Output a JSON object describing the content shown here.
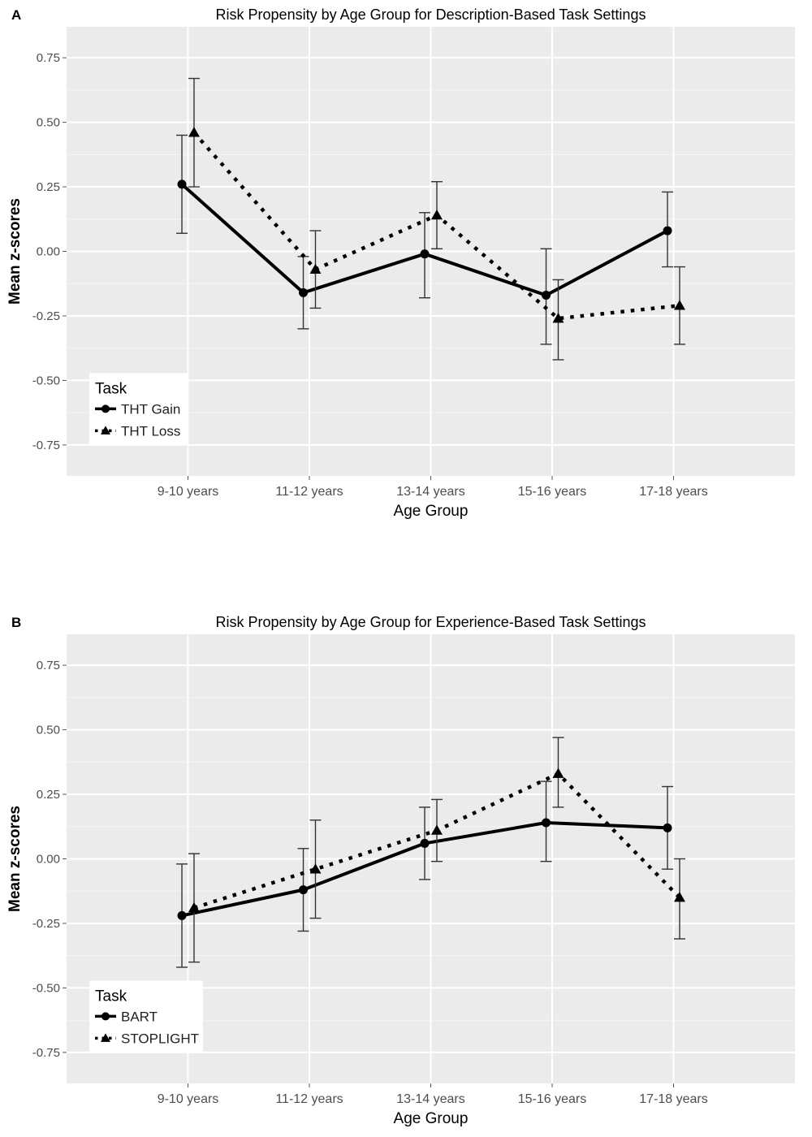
{
  "colors": {
    "panel_background": "#ebebeb",
    "grid_major": "#ffffff",
    "grid_minor": "#f5f5f5",
    "line": "#000000",
    "error_bar": "#333333",
    "tick_text": "#4d4d4d",
    "legend_background": "#ffffff"
  },
  "chart_data": [
    {
      "panel_letter": "A",
      "type": "line",
      "title": "Risk Propensity by Age Group for Description-Based Task Settings",
      "xlabel": "Age Group",
      "ylabel": "Mean z-scores",
      "ylim": [
        -0.87,
        0.87
      ],
      "yticks": [
        0.75,
        0.5,
        0.25,
        0.0,
        -0.25,
        -0.5,
        -0.75
      ],
      "ytick_labels": [
        "0.75",
        "0.50",
        "0.25",
        "0.00",
        "-0.25",
        "-0.50",
        "-0.75"
      ],
      "categories": [
        "9-10 years",
        "11-12 years",
        "13-14 years",
        "15-16 years",
        "17-18 years"
      ],
      "grid": true,
      "legend": {
        "title": "Task",
        "position": "bottom-left"
      },
      "series": [
        {
          "name": "THT Gain",
          "marker": "circle",
          "linestyle": "solid",
          "dodge": -0.05,
          "values": [
            0.26,
            -0.16,
            -0.01,
            -0.17,
            0.08
          ],
          "lower": [
            0.07,
            -0.3,
            -0.18,
            -0.36,
            -0.06
          ],
          "upper": [
            0.45,
            -0.02,
            0.15,
            0.01,
            0.23
          ]
        },
        {
          "name": "THT Loss",
          "marker": "triangle",
          "linestyle": "dotted",
          "dodge": 0.05,
          "values": [
            0.46,
            -0.07,
            0.14,
            -0.26,
            -0.21
          ],
          "lower": [
            0.25,
            -0.22,
            0.01,
            -0.42,
            -0.36
          ],
          "upper": [
            0.67,
            0.08,
            0.27,
            -0.11,
            -0.06
          ]
        }
      ]
    },
    {
      "panel_letter": "B",
      "type": "line",
      "title": "Risk Propensity by Age Group for Experience-Based Task Settings",
      "xlabel": "Age Group",
      "ylabel": "Mean z-scores",
      "ylim": [
        -0.87,
        0.87
      ],
      "yticks": [
        0.75,
        0.5,
        0.25,
        0.0,
        -0.25,
        -0.5,
        -0.75
      ],
      "ytick_labels": [
        "0.75",
        "0.50",
        "0.25",
        "0.00",
        "-0.25",
        "-0.50",
        "-0.75"
      ],
      "categories": [
        "9-10 years",
        "11-12 years",
        "13-14 years",
        "15-16 years",
        "17-18 years"
      ],
      "grid": true,
      "legend": {
        "title": "Task",
        "position": "bottom-left"
      },
      "series": [
        {
          "name": "BART",
          "marker": "circle",
          "linestyle": "solid",
          "dodge": -0.05,
          "values": [
            -0.22,
            -0.12,
            0.06,
            0.14,
            0.12
          ],
          "lower": [
            -0.42,
            -0.28,
            -0.08,
            -0.01,
            -0.04
          ],
          "upper": [
            -0.02,
            0.04,
            0.2,
            0.3,
            0.28
          ]
        },
        {
          "name": "STOPLIGHT",
          "marker": "triangle",
          "linestyle": "dotted",
          "dodge": 0.05,
          "values": [
            -0.19,
            -0.04,
            0.11,
            0.33,
            -0.15
          ],
          "lower": [
            -0.4,
            -0.23,
            -0.01,
            0.2,
            -0.31
          ],
          "upper": [
            0.02,
            0.15,
            0.23,
            0.47,
            0.0
          ]
        }
      ]
    }
  ]
}
